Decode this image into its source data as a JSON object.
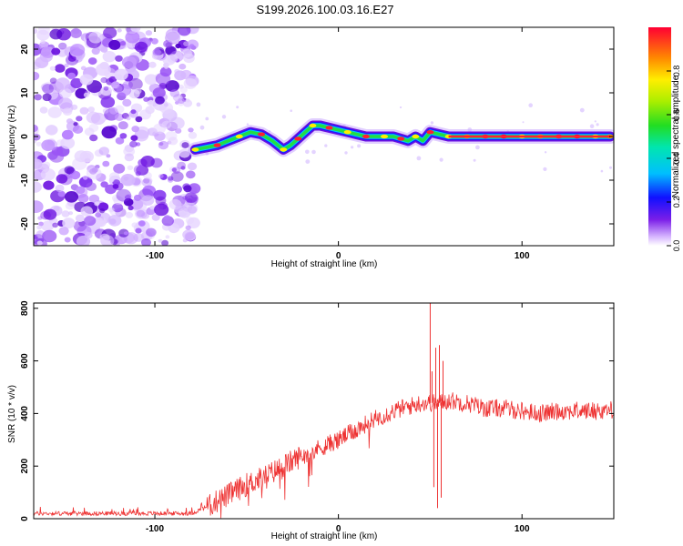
{
  "title": "S199.2026.100.03.16.E27",
  "chart_data": [
    {
      "type": "heatmap",
      "name": "spectrogram",
      "xlabel": "Height of straight line (km)",
      "ylabel": "Frequency (Hz)",
      "xlim": [
        -166,
        150
      ],
      "ylim": [
        -25,
        25
      ],
      "xticks": [
        -100,
        0,
        100
      ],
      "yticks": [
        20,
        10,
        0,
        -10,
        -20
      ],
      "noise_region_x": [
        -166,
        -80
      ],
      "ridge": {
        "x": [
          -78,
          -72,
          -66,
          -60,
          -54,
          -48,
          -42,
          -36,
          -30,
          -26,
          -22,
          -18,
          -14,
          -10,
          -5,
          0,
          5,
          10,
          15,
          20,
          25,
          30,
          34,
          38,
          42,
          46,
          50,
          55,
          60,
          70,
          80,
          90,
          100,
          110,
          120,
          130,
          140,
          148
        ],
        "y": [
          -3,
          -2.5,
          -2,
          -1,
          0,
          1,
          0.5,
          -1,
          -3,
          -2,
          -0.5,
          1,
          2.5,
          2.5,
          2,
          1.5,
          1,
          0.5,
          0,
          0,
          0,
          0,
          -0.5,
          -1,
          0,
          -1,
          1,
          0.5,
          0,
          0,
          0,
          0,
          0,
          0,
          0,
          0,
          0,
          0
        ]
      },
      "colorbar": {
        "label": "Normalized spectral amplitude",
        "ticks": [
          0.0,
          0.2,
          0.4,
          0.6,
          0.8
        ],
        "range": [
          0,
          1
        ]
      }
    },
    {
      "type": "line",
      "name": "snr",
      "xlabel": "Height of straight line (km)",
      "ylabel": "SNR (10 * v/v)",
      "xlim": [
        -166,
        150
      ],
      "ylim": [
        0,
        820
      ],
      "xticks": [
        -100,
        0,
        100
      ],
      "yticks": [
        0,
        200,
        400,
        600,
        800
      ],
      "color": "#ee3333",
      "trend": {
        "x": [
          -166,
          -120,
          -80,
          -70,
          -60,
          -50,
          -40,
          -30,
          -20,
          -10,
          0,
          10,
          20,
          30,
          40,
          45,
          50,
          55,
          60,
          70,
          80,
          90,
          100,
          110,
          120,
          130,
          140,
          150
        ],
        "y": [
          20,
          20,
          20,
          50,
          90,
          130,
          160,
          200,
          240,
          270,
          300,
          340,
          380,
          410,
          430,
          440,
          440,
          440,
          450,
          440,
          420,
          420,
          410,
          400,
          410,
          410,
          410,
          415
        ]
      },
      "spikes": [
        {
          "x": 50,
          "y": 820
        },
        {
          "x": 51,
          "y": 560
        },
        {
          "x": 52,
          "y": 120
        },
        {
          "x": 53,
          "y": 650
        },
        {
          "x": 54,
          "y": 40
        },
        {
          "x": 55,
          "y": 660
        },
        {
          "x": 56,
          "y": 80
        },
        {
          "x": 57,
          "y": 600
        }
      ]
    }
  ]
}
